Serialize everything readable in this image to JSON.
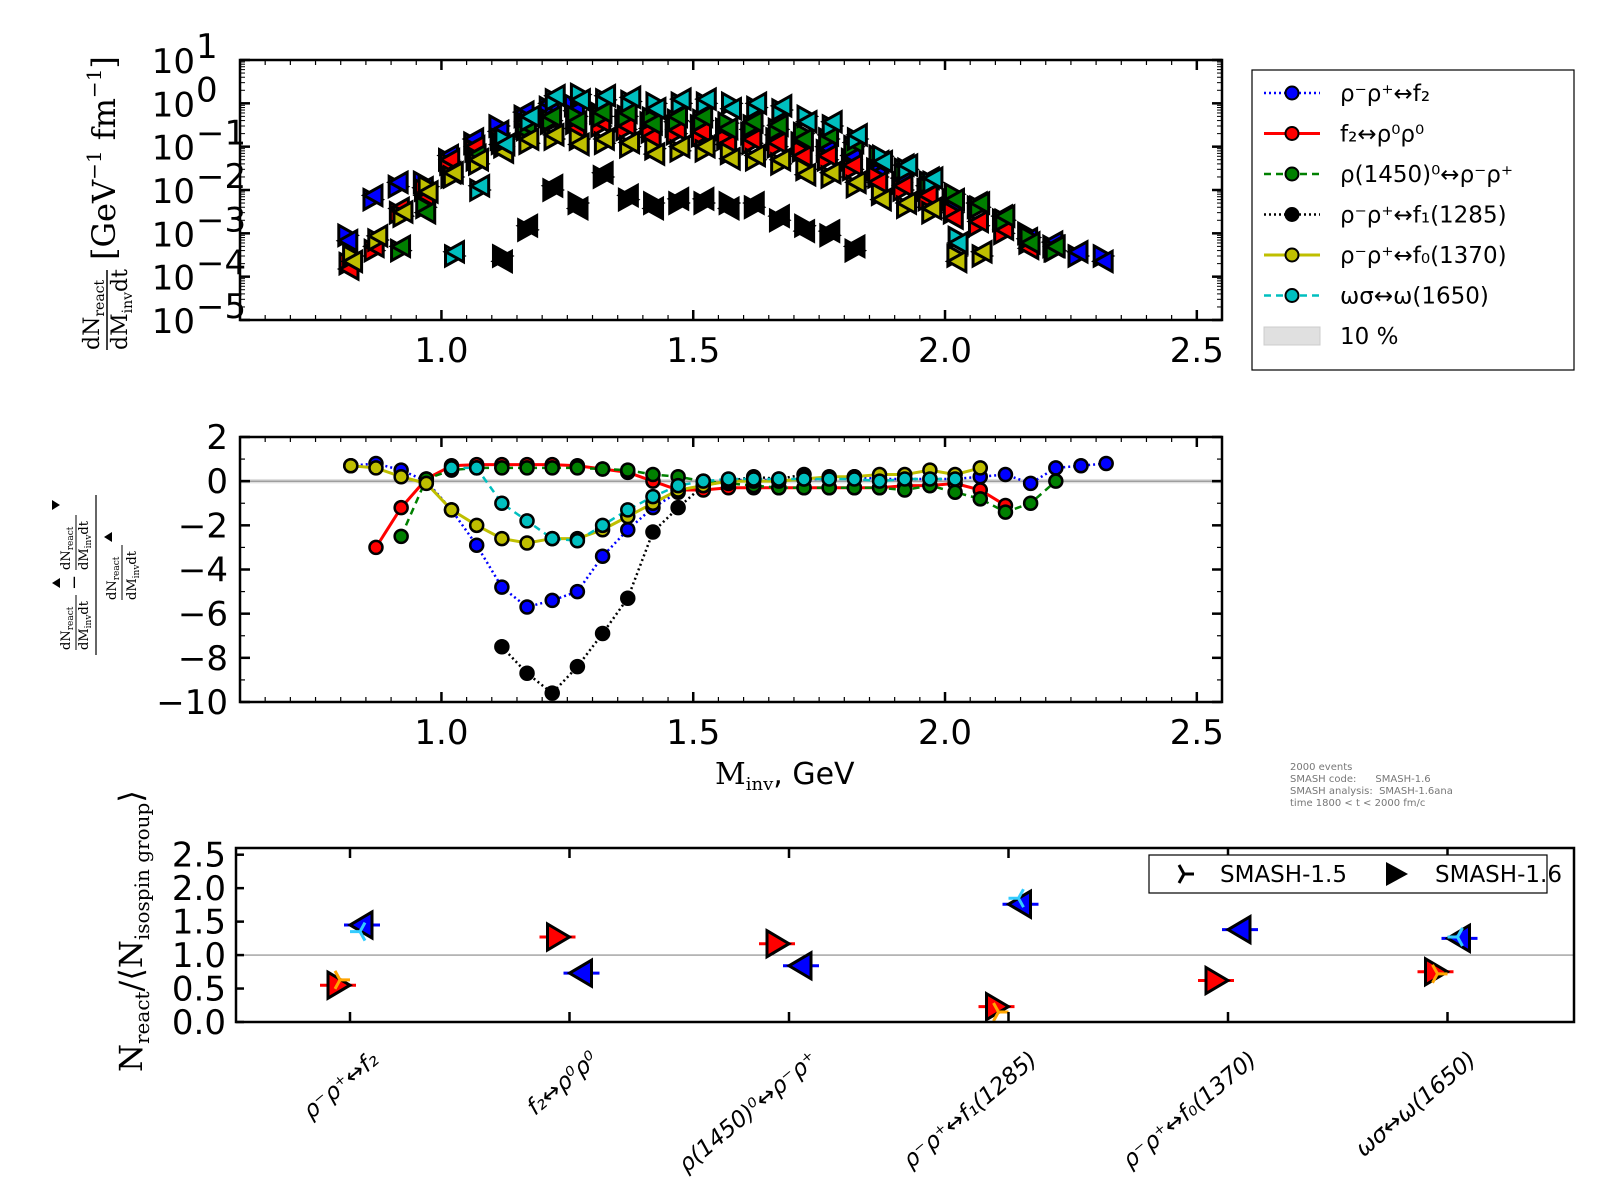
{
  "colors": {
    "rho_rho_f2": "#0000ff",
    "f2_rho0rho0": "#ff0000",
    "rho1450": "#008000",
    "f1_1285": "#000000",
    "f0_1370": "#bfbf00",
    "omega1650": "#00bfbf",
    "band": "#e0e0e0",
    "v15_a": "#ffa500",
    "v15_b": "#33ccff"
  },
  "info_box": {
    "line1": "2000 events",
    "line2": "SMASH code:      SMASH-1.6",
    "line3": "SMASH analysis:  SMASH-1.6ana",
    "line4": "time 1800 < t < 2000 fm/c"
  },
  "chart_data": [
    {
      "type": "scatter",
      "panel": "top",
      "yscale": "log",
      "xlabel": "",
      "ylabel": "dN_react/dM_inv dt [GeV^-1 fm^-1]",
      "xlim": [
        0.6,
        2.55
      ],
      "ylim": [
        1e-05,
        10
      ],
      "x_ticks": [
        "1.0",
        "1.5",
        "2.0",
        "2.5"
      ],
      "y_ticks": [
        "10^1",
        "10^0",
        "10^-1",
        "10^-2",
        "10^-3",
        "10^-4",
        "10^-5"
      ],
      "markers": "right-pointing triangle = SMASH-1.6 forward, left-pointing triangle = reverse",
      "x": [
        0.82,
        0.87,
        0.92,
        0.97,
        1.02,
        1.07,
        1.12,
        1.17,
        1.22,
        1.27,
        1.32,
        1.37,
        1.42,
        1.47,
        1.52,
        1.57,
        1.62,
        1.67,
        1.72,
        1.77,
        1.82,
        1.87,
        1.92,
        1.97,
        2.02,
        2.07,
        2.12,
        2.17,
        2.22,
        2.27,
        2.32
      ],
      "series": [
        {
          "name": "ρ⁻ρ⁺↔f₂",
          "color": "#0000ff",
          "values": [
            0.0009,
            0.006,
            0.012,
            0.015,
            0.05,
            0.12,
            0.3,
            0.5,
            0.8,
            0.9,
            0.6,
            0.4,
            0.35,
            0.3,
            0.3,
            0.25,
            0.2,
            0.15,
            0.12,
            0.08,
            0.05,
            0.03,
            0.015,
            0.01,
            0.006,
            0.004,
            0.002,
            0.001,
            0.0005,
            0.0003,
            0.0003
          ]
        },
        {
          "name": "f₂↔ρ⁰ρ⁰",
          "color": "#ff0000",
          "values": [
            0.0002,
            0.0004,
            0.003,
            0.01,
            0.04,
            0.08,
            0.15,
            0.3,
            0.35,
            0.35,
            0.3,
            0.25,
            0.22,
            0.2,
            0.18,
            0.15,
            0.12,
            0.1,
            0.08,
            0.05,
            0.03,
            0.02,
            0.01,
            0.006,
            0.003,
            0.0015,
            0.001,
            0.0006,
            0.0004,
            null,
            null
          ]
        },
        {
          "name": "ρ(1450)⁰↔ρ⁻ρ⁺",
          "color": "#008000",
          "values": [
            null,
            null,
            0.0004,
            0.004,
            0.02,
            0.05,
            0.12,
            0.25,
            0.4,
            0.5,
            0.5,
            0.5,
            0.45,
            0.4,
            0.4,
            0.35,
            0.3,
            0.25,
            0.2,
            0.15,
            0.1,
            0.06,
            0.03,
            0.015,
            0.008,
            0.004,
            0.002,
            0.0008,
            0.0004,
            null,
            null
          ]
        },
        {
          "name": "ρ⁻ρ⁺↔f₁(1285)",
          "color": "#000000",
          "values": [
            null,
            null,
            null,
            null,
            null,
            null,
            0.0003,
            0.0012,
            0.01,
            0.005,
            0.02,
            0.006,
            0.005,
            0.005,
            0.005,
            0.005,
            0.004,
            0.002,
            0.0015,
            0.0009,
            0.0004,
            null,
            null,
            null,
            null,
            null,
            null,
            null,
            null,
            null,
            null
          ]
        },
        {
          "name": "ρ⁻ρ⁺↔f₀(1370)",
          "color": "#bfbf00",
          "values": [
            0.0003,
            0.0007,
            0.0025,
            0.012,
            0.02,
            0.04,
            0.1,
            0.12,
            0.15,
            0.15,
            0.12,
            0.1,
            0.09,
            0.08,
            0.08,
            0.07,
            0.05,
            0.04,
            0.03,
            0.02,
            0.012,
            0.008,
            0.004,
            0.003,
            0.0003,
            0.0003,
            null,
            null,
            null,
            null,
            null
          ]
        },
        {
          "name": "ωσ↔ω(1650)",
          "color": "#00bfbf",
          "values": [
            null,
            null,
            null,
            null,
            0.0003,
            0.01,
            0.15,
            0.4,
            1.2,
            1.6,
            1.2,
            1.1,
            1.0,
            1.0,
            1.0,
            1.0,
            0.8,
            0.7,
            0.5,
            0.3,
            0.15,
            0.06,
            0.03,
            0.015,
            0.0008,
            null,
            null,
            null,
            null,
            null,
            null
          ]
        }
      ],
      "legend": {
        "placement": "outside-right",
        "entries": [
          {
            "label": "ρ⁻ρ⁺↔f₂",
            "color": "#0000ff",
            "line": "dotted"
          },
          {
            "label": "f₂↔ρ⁰ρ⁰",
            "color": "#ff0000",
            "line": "solid"
          },
          {
            "label": "ρ(1450)⁰↔ρ⁻ρ⁺",
            "color": "#008000",
            "line": "dashed"
          },
          {
            "label": "ρ⁻ρ⁺↔f₁(1285)",
            "color": "#000000",
            "line": "dotted"
          },
          {
            "label": "ρ⁻ρ⁺↔f₀(1370)",
            "color": "#bfbf00",
            "line": "solid"
          },
          {
            "label": "ωσ↔ω(1650)",
            "color": "#00bfbf",
            "line": "dashed"
          },
          {
            "label": "10 %",
            "color": "#e0e0e0",
            "line": "band"
          }
        ]
      }
    },
    {
      "type": "line",
      "panel": "middle",
      "xlabel": "M_inv, GeV",
      "ylabel": "(dN▲ − dN▼) / dN▲",
      "xlim": [
        0.6,
        2.55
      ],
      "ylim": [
        -10,
        2
      ],
      "x_ticks": [
        "1.0",
        "1.5",
        "2.0",
        "2.5"
      ],
      "y_ticks": [
        "2",
        "0",
        "−2",
        "−4",
        "−6",
        "−8",
        "−10"
      ],
      "reference_band": {
        "center": 0,
        "half_width": 0.1
      },
      "series": [
        {
          "name": "ρ⁻ρ⁺↔f₂",
          "color": "#0000ff",
          "line": "dotted",
          "x": [
            0.82,
            0.87,
            0.92,
            0.97,
            1.02,
            1.07,
            1.12,
            1.17,
            1.22,
            1.27,
            1.32,
            1.37,
            1.42,
            1.47,
            1.52,
            1.57,
            1.62,
            1.67,
            1.72,
            1.77,
            1.82,
            1.87,
            1.92,
            1.97,
            2.02,
            2.07,
            2.12,
            2.17,
            2.22,
            2.27,
            2.32
          ],
          "values": [
            0.7,
            0.8,
            0.5,
            0.0,
            -1.3,
            -2.9,
            -4.8,
            -5.7,
            -5.4,
            -5.0,
            -3.4,
            -2.2,
            -1.2,
            -0.5,
            -0.2,
            0.0,
            0.1,
            0.0,
            0.1,
            0.1,
            0.2,
            0.1,
            0.1,
            0.1,
            0.1,
            0.2,
            0.3,
            -0.1,
            0.6,
            0.7,
            0.8
          ]
        },
        {
          "name": "f₂↔ρ⁰ρ⁰",
          "color": "#ff0000",
          "line": "solid",
          "x": [
            0.87,
            0.92,
            0.97,
            1.02,
            1.07,
            1.12,
            1.17,
            1.22,
            1.27,
            1.32,
            1.37,
            1.42,
            1.47,
            1.52,
            1.57,
            1.62,
            1.67,
            1.72,
            1.77,
            1.82,
            1.87,
            1.92,
            1.97,
            2.02,
            2.07,
            2.12
          ],
          "values": [
            -3.0,
            -1.2,
            0.1,
            0.7,
            0.75,
            0.75,
            0.75,
            0.75,
            0.7,
            0.55,
            0.4,
            0.0,
            -0.4,
            -0.4,
            -0.3,
            -0.3,
            -0.3,
            -0.3,
            -0.3,
            -0.3,
            -0.3,
            -0.2,
            -0.2,
            -0.1,
            -0.4,
            -1.1
          ]
        },
        {
          "name": "ρ(1450)⁰↔ρ⁻ρ⁺",
          "color": "#008000",
          "line": "dashed",
          "x": [
            0.92,
            0.97,
            1.02,
            1.07,
            1.12,
            1.17,
            1.22,
            1.27,
            1.32,
            1.37,
            1.42,
            1.47,
            1.52,
            1.57,
            1.62,
            1.67,
            1.72,
            1.77,
            1.82,
            1.87,
            1.92,
            1.97,
            2.02,
            2.07,
            2.12,
            2.17,
            2.22
          ],
          "values": [
            -2.5,
            0.1,
            0.5,
            0.6,
            0.6,
            0.6,
            0.6,
            0.6,
            0.55,
            0.5,
            0.3,
            0.2,
            0.0,
            -0.1,
            -0.2,
            -0.3,
            -0.3,
            -0.3,
            -0.3,
            -0.3,
            -0.4,
            -0.2,
            -0.5,
            -0.8,
            -1.4,
            -1.0,
            0.0
          ]
        },
        {
          "name": "ρ⁻ρ⁺↔f₁(1285)",
          "color": "#000000",
          "line": "dotted",
          "x": [
            1.12,
            1.17,
            1.22,
            1.27,
            1.32,
            1.37,
            1.42,
            1.47,
            1.52,
            1.57,
            1.62,
            1.67,
            1.72
          ],
          "values": [
            -7.5,
            -8.7,
            -9.6,
            -8.4,
            -6.9,
            -5.3,
            -2.3,
            -1.2,
            -0.2,
            0.0,
            0.2,
            0.1,
            0.3
          ]
        },
        {
          "name": "ρ⁻ρ⁺↔f₀(1370)",
          "color": "#bfbf00",
          "line": "solid",
          "x": [
            0.82,
            0.87,
            0.92,
            0.97,
            1.02,
            1.07,
            1.12,
            1.17,
            1.22,
            1.27,
            1.32,
            1.37,
            1.42,
            1.47,
            1.52,
            1.57,
            1.62,
            1.67,
            1.72,
            1.77,
            1.82,
            1.87,
            1.92,
            1.97,
            2.02,
            2.07
          ],
          "values": [
            0.7,
            0.6,
            0.2,
            -0.1,
            -1.3,
            -2.0,
            -2.6,
            -2.8,
            -2.6,
            -2.6,
            -2.2,
            -1.6,
            -1.0,
            -0.4,
            -0.2,
            0.0,
            0.0,
            0.0,
            0.1,
            0.2,
            0.2,
            0.3,
            0.3,
            0.5,
            0.3,
            0.6
          ]
        },
        {
          "name": "ωσ↔ω(1650)",
          "color": "#00bfbf",
          "line": "dashed",
          "x": [
            1.02,
            1.07,
            1.12,
            1.17,
            1.22,
            1.27,
            1.32,
            1.37,
            1.42,
            1.47,
            1.52,
            1.57,
            1.62,
            1.67,
            1.72,
            1.77,
            1.82,
            1.87,
            1.92,
            1.97,
            2.02
          ],
          "values": [
            0.6,
            0.6,
            -1.0,
            -1.8,
            -2.6,
            -2.7,
            -2.0,
            -1.3,
            -0.7,
            -0.2,
            0.0,
            0.1,
            0.1,
            0.1,
            0.1,
            0.1,
            0.1,
            0.0,
            0.1,
            0.1,
            0.1
          ]
        }
      ]
    },
    {
      "type": "scatter",
      "panel": "bottom",
      "xlabel": "",
      "ylabel": "N_react/⟨N_isospin group⟩",
      "ylim": [
        0,
        2.6
      ],
      "y_ticks": [
        "2.5",
        "2.0",
        "1.5",
        "1.0",
        "0.5",
        "0.0"
      ],
      "categories": [
        "ρ⁻ρ⁺↔f₂",
        "f₂↔ρ⁰ρ⁰",
        "ρ(1450)⁰↔ρ⁻ρ⁺",
        "ρ⁻ρ⁺↔f₁(1285)",
        "ρ⁻ρ⁺↔f₀(1370)",
        "ωσ↔ω(1650)"
      ],
      "reference_line": 1.0,
      "series": [
        {
          "name": "SMASH-1.6 forward",
          "marker": "triangle-right",
          "color": "#ff0000",
          "values": [
            0.55,
            1.27,
            1.17,
            0.23,
            0.62,
            0.75
          ]
        },
        {
          "name": "SMASH-1.6 reverse",
          "marker": "triangle-left",
          "color": "#0000ff",
          "values": [
            1.45,
            0.73,
            0.84,
            1.76,
            1.38,
            1.25
          ]
        },
        {
          "name": "SMASH-1.5 forward",
          "marker": "tri-right",
          "color": "#ffa500",
          "values": [
            0.63,
            null,
            null,
            0.15,
            null,
            0.72
          ]
        },
        {
          "name": "SMASH-1.5 reverse",
          "marker": "tri-left",
          "color": "#33ccff",
          "values": [
            1.35,
            null,
            null,
            1.85,
            null,
            1.27
          ]
        }
      ],
      "legend": {
        "placement": "top-right",
        "entries": [
          {
            "label": "SMASH-1.5",
            "marker": "tri-right"
          },
          {
            "label": "SMASH-1.6",
            "marker": "triangle-right"
          }
        ]
      }
    }
  ]
}
